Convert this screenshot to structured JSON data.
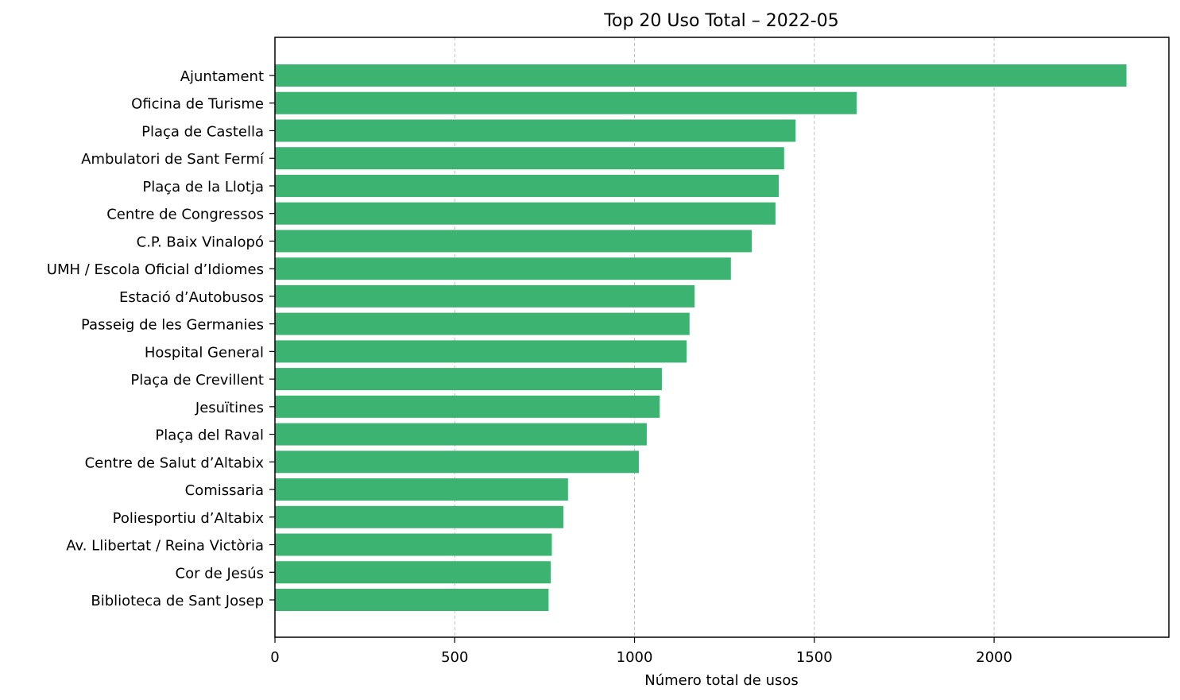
{
  "chart_data": {
    "type": "bar",
    "orientation": "horizontal",
    "title": "Top 20 Uso Total – 2022-05",
    "xlabel": "Número total de usos",
    "ylabel": "",
    "xlim": [
      0,
      2486
    ],
    "xticks": [
      "0",
      "500",
      "1000",
      "1500",
      "2000"
    ],
    "grid": "x dashed",
    "legend": "none",
    "bar_color": "#3cb371",
    "categories": [
      "Ajuntament",
      "Oficina de Turisme",
      "Plaça de Castella",
      "Ambulatori de Sant Fermí",
      "Plaça de la Llotja",
      "Centre de Congressos",
      "C.P. Baix Vinalopó",
      "UMH / Escola Oficial d’Idiomes",
      "Estació d’Autobusos",
      "Passeig de les Germanies",
      "Hospital General",
      "Plaça de Crevillent",
      "Jesuïtines",
      "Plaça del Raval",
      "Centre de Salut d’Altabix",
      "Comissaria",
      "Poliesportiu d’Altabix",
      "Av. Llibertat / Reina Victòria",
      "Cor de Jesús",
      "Biblioteca de Sant Josep"
    ],
    "values": [
      2368,
      1618,
      1448,
      1416,
      1401,
      1392,
      1326,
      1268,
      1167,
      1153,
      1145,
      1076,
      1070,
      1034,
      1012,
      815,
      802,
      770,
      767,
      761
    ]
  }
}
